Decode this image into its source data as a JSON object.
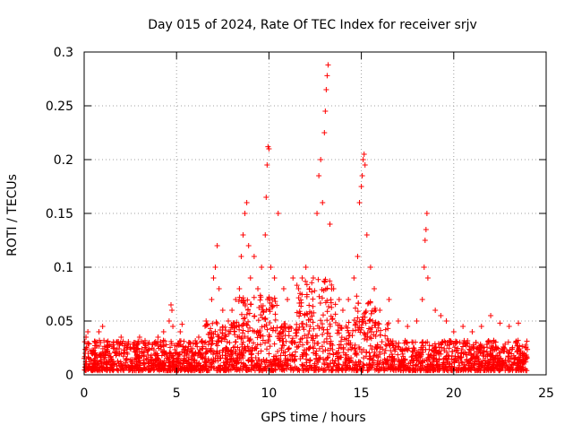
{
  "chart_data": {
    "type": "scatter",
    "title": "Day 015 of 2024, Rate Of TEC Index for receiver srjv",
    "xlabel": "GPS time / hours",
    "ylabel": "ROTI / TECUs",
    "xlim": [
      0,
      25
    ],
    "ylim": [
      0,
      0.3
    ],
    "xticks": [
      0,
      5,
      10,
      15,
      20,
      25
    ],
    "yticks": [
      0,
      0.05,
      0.1,
      0.15,
      0.2,
      0.25,
      0.3
    ],
    "xtick_labels": [
      "0",
      "5",
      "10",
      "15",
      "20",
      "25"
    ],
    "ytick_labels": [
      "0",
      "0.05",
      "0.1",
      "0.15",
      "0.2",
      "0.25",
      "0.3"
    ],
    "grid": true,
    "marker": "+",
    "color": "#ff0000",
    "data_range_hours": [
      0,
      24
    ],
    "points": [
      [
        0.1,
        0.035
      ],
      [
        0.2,
        0.04
      ],
      [
        0.4,
        0.02
      ],
      [
        0.6,
        0.03
      ],
      [
        0.8,
        0.04
      ],
      [
        1.0,
        0.045
      ],
      [
        1.3,
        0.02
      ],
      [
        1.6,
        0.03
      ],
      [
        2.0,
        0.035
      ],
      [
        2.3,
        0.025
      ],
      [
        2.7,
        0.03
      ],
      [
        3.0,
        0.035
      ],
      [
        3.3,
        0.03
      ],
      [
        3.7,
        0.028
      ],
      [
        4.0,
        0.035
      ],
      [
        4.3,
        0.04
      ],
      [
        4.6,
        0.05
      ],
      [
        4.7,
        0.065
      ],
      [
        4.75,
        0.06
      ],
      [
        4.8,
        0.045
      ],
      [
        5.2,
        0.04
      ],
      [
        5.3,
        0.047
      ],
      [
        5.7,
        0.03
      ],
      [
        6.2,
        0.035
      ],
      [
        6.6,
        0.05
      ],
      [
        6.9,
        0.07
      ],
      [
        7.0,
        0.09
      ],
      [
        7.1,
        0.1
      ],
      [
        7.2,
        0.12
      ],
      [
        7.3,
        0.08
      ],
      [
        7.5,
        0.06
      ],
      [
        7.8,
        0.05
      ],
      [
        8.0,
        0.06
      ],
      [
        8.2,
        0.07
      ],
      [
        8.4,
        0.08
      ],
      [
        8.5,
        0.11
      ],
      [
        8.6,
        0.13
      ],
      [
        8.7,
        0.15
      ],
      [
        8.8,
        0.16
      ],
      [
        8.9,
        0.12
      ],
      [
        9.0,
        0.09
      ],
      [
        9.2,
        0.11
      ],
      [
        9.4,
        0.08
      ],
      [
        9.6,
        0.1
      ],
      [
        9.8,
        0.13
      ],
      [
        9.85,
        0.165
      ],
      [
        9.9,
        0.195
      ],
      [
        9.95,
        0.212
      ],
      [
        10.0,
        0.21
      ],
      [
        10.1,
        0.1
      ],
      [
        10.3,
        0.09
      ],
      [
        10.5,
        0.15
      ],
      [
        10.8,
        0.08
      ],
      [
        11.0,
        0.07
      ],
      [
        11.3,
        0.09
      ],
      [
        11.6,
        0.08
      ],
      [
        11.8,
        0.09
      ],
      [
        12.0,
        0.1
      ],
      [
        12.2,
        0.08
      ],
      [
        12.4,
        0.09
      ],
      [
        12.6,
        0.15
      ],
      [
        12.7,
        0.185
      ],
      [
        12.8,
        0.2
      ],
      [
        12.9,
        0.16
      ],
      [
        13.0,
        0.225
      ],
      [
        13.05,
        0.245
      ],
      [
        13.1,
        0.265
      ],
      [
        13.15,
        0.278
      ],
      [
        13.2,
        0.288
      ],
      [
        13.3,
        0.14
      ],
      [
        13.5,
        0.08
      ],
      [
        13.8,
        0.07
      ],
      [
        14.0,
        0.06
      ],
      [
        14.3,
        0.07
      ],
      [
        14.6,
        0.09
      ],
      [
        14.8,
        0.11
      ],
      [
        14.9,
        0.16
      ],
      [
        15.0,
        0.175
      ],
      [
        15.05,
        0.185
      ],
      [
        15.1,
        0.2
      ],
      [
        15.15,
        0.205
      ],
      [
        15.2,
        0.195
      ],
      [
        15.3,
        0.13
      ],
      [
        15.5,
        0.1
      ],
      [
        15.7,
        0.08
      ],
      [
        16.0,
        0.06
      ],
      [
        16.5,
        0.07
      ],
      [
        17.0,
        0.05
      ],
      [
        17.5,
        0.045
      ],
      [
        18.0,
        0.05
      ],
      [
        18.3,
        0.07
      ],
      [
        18.4,
        0.1
      ],
      [
        18.45,
        0.125
      ],
      [
        18.5,
        0.135
      ],
      [
        18.55,
        0.15
      ],
      [
        18.6,
        0.09
      ],
      [
        19.0,
        0.06
      ],
      [
        19.3,
        0.055
      ],
      [
        19.6,
        0.05
      ],
      [
        20.0,
        0.04
      ],
      [
        20.5,
        0.045
      ],
      [
        21.0,
        0.04
      ],
      [
        21.5,
        0.045
      ],
      [
        22.0,
        0.055
      ],
      [
        22.5,
        0.048
      ],
      [
        23.0,
        0.045
      ],
      [
        23.5,
        0.048
      ],
      [
        23.9,
        0.025
      ]
    ]
  }
}
